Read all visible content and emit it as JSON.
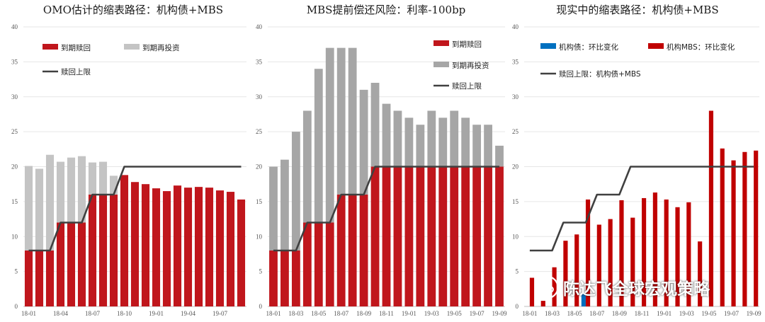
{
  "colors": {
    "matured": "#c0161c",
    "reinvest_left": "#c4c4c4",
    "reinvest_mid": "#a6a6a6",
    "agency": "#0070c0",
    "agency_mbs": "#c00000",
    "cap_line": "#404040",
    "grid": "#e6e6e6"
  },
  "watermark": {
    "text": "陈达飞全球宏观策略",
    "logo_icon": "wechat-icon"
  },
  "chart_data": [
    {
      "type": "bar",
      "title": "OMO估计的缩表路径：机构债+MBS",
      "ylim": [
        0,
        40
      ],
      "yticks": [
        0,
        5,
        10,
        15,
        20,
        25,
        30,
        35,
        40
      ],
      "categories": [
        "18-01",
        "18-02",
        "18-03",
        "18-04",
        "18-05",
        "18-06",
        "18-07",
        "18-08",
        "18-09",
        "18-10",
        "18-11",
        "18-12",
        "19-01",
        "19-02",
        "19-03",
        "19-04",
        "19-05",
        "19-06",
        "19-07",
        "19-08",
        "19-09"
      ],
      "xtick_labels": [
        "18-01",
        "",
        "",
        "18-04",
        "",
        "",
        "18-07",
        "",
        "",
        "18-10",
        "",
        "",
        "19-01",
        "",
        "",
        "19-04",
        "",
        "",
        "19-07",
        "",
        ""
      ],
      "legend": [
        {
          "label": "到期赎回",
          "kind": "bar",
          "color_key": "matured"
        },
        {
          "label": "到期再投资",
          "kind": "bar",
          "color_key": "reinvest_left"
        },
        {
          "label": "赎回上限",
          "kind": "line",
          "color_key": "cap_line"
        }
      ],
      "series": [
        {
          "name": "到期赎回",
          "kind": "stack",
          "color_key": "matured",
          "values": [
            8,
            8,
            8,
            12,
            12,
            12,
            16,
            16,
            16,
            18.8,
            17.8,
            17.5,
            16.9,
            16.5,
            17.3,
            17.0,
            17.1,
            17.0,
            16.6,
            16.4,
            15.3
          ]
        },
        {
          "name": "到期再投资",
          "kind": "stack",
          "color_key": "reinvest_left",
          "values": [
            12.1,
            11.7,
            13.7,
            8.7,
            9.3,
            9.5,
            4.6,
            4.7,
            2.7,
            0,
            0,
            0,
            0,
            0,
            0,
            0,
            0,
            0,
            0,
            0,
            0
          ]
        },
        {
          "name": "赎回上限",
          "kind": "step",
          "color_key": "cap_line",
          "values": [
            8,
            8,
            8,
            12,
            12,
            12,
            16,
            16,
            16,
            20,
            20,
            20,
            20,
            20,
            20,
            20,
            20,
            20,
            20,
            20,
            20
          ]
        }
      ]
    },
    {
      "type": "bar",
      "title": "MBS提前偿还风险：利率-100bp",
      "ylim": [
        0,
        40
      ],
      "yticks": [
        0,
        5,
        10,
        15,
        20,
        25,
        30,
        35,
        40
      ],
      "categories": [
        "18-01",
        "18-02",
        "18-03",
        "18-04",
        "18-05",
        "18-06",
        "18-07",
        "18-08",
        "18-09",
        "18-10",
        "18-11",
        "18-12",
        "19-01",
        "19-02",
        "19-03",
        "19-04",
        "19-05",
        "19-06",
        "19-07",
        "19-08",
        "19-09"
      ],
      "xtick_labels": [
        "18-01",
        "",
        "18-03",
        "",
        "18-05",
        "",
        "18-07",
        "",
        "18-09",
        "",
        "18-11",
        "",
        "19-01",
        "",
        "19-03",
        "",
        "19-05",
        "",
        "19-07",
        "",
        "19-09"
      ],
      "legend": [
        {
          "label": "到期赎回",
          "kind": "bar",
          "color_key": "matured"
        },
        {
          "label": "到期再投资",
          "kind": "bar",
          "color_key": "reinvest_mid"
        },
        {
          "label": "赎回上限",
          "kind": "line",
          "color_key": "cap_line"
        }
      ],
      "series": [
        {
          "name": "到期赎回",
          "kind": "stack",
          "color_key": "matured",
          "values": [
            8,
            8,
            8,
            12,
            12,
            12,
            16,
            16,
            16,
            20,
            20,
            20,
            20,
            20,
            20,
            20,
            20,
            20,
            20,
            20,
            20
          ]
        },
        {
          "name": "到期再投资",
          "kind": "stack",
          "color_key": "reinvest_mid",
          "values": [
            12,
            13,
            17,
            16,
            22,
            25,
            21,
            21,
            15,
            12,
            9,
            8,
            7,
            6,
            8,
            7,
            8,
            7,
            6,
            6,
            3
          ]
        },
        {
          "name": "赎回上限",
          "kind": "step",
          "color_key": "cap_line",
          "values": [
            8,
            8,
            8,
            12,
            12,
            12,
            16,
            16,
            16,
            20,
            20,
            20,
            20,
            20,
            20,
            20,
            20,
            20,
            20,
            20,
            20
          ]
        }
      ]
    },
    {
      "type": "bar",
      "title": "现实中的缩表路径：机构债+MBS",
      "ylim": [
        0,
        40
      ],
      "yticks": [
        0,
        5,
        10,
        15,
        20,
        25,
        30,
        35,
        40
      ],
      "categories": [
        "18-01",
        "18-02",
        "18-03",
        "18-04",
        "18-05",
        "18-06",
        "18-07",
        "18-08",
        "18-09",
        "18-10",
        "18-11",
        "18-12",
        "19-01",
        "19-02",
        "19-03",
        "19-04",
        "19-05",
        "19-06",
        "19-07",
        "19-08",
        "19-09"
      ],
      "xtick_labels": [
        "18-01",
        "",
        "18-03",
        "",
        "18-05",
        "",
        "18-07",
        "",
        "18-09",
        "",
        "18-11",
        "",
        "19-01",
        "",
        "19-03",
        "",
        "19-05",
        "",
        "19-07",
        "",
        "19-09"
      ],
      "legend": [
        {
          "label": "机构债：环比变化",
          "kind": "bar",
          "color_key": "agency"
        },
        {
          "label": "机构MBS：环比变化",
          "kind": "bar",
          "color_key": "agency_mbs"
        },
        {
          "label": "赎回上限：机构债+MBS",
          "kind": "line",
          "color_key": "cap_line"
        }
      ],
      "series": [
        {
          "name": "机构债：环比变化",
          "kind": "cluster",
          "color_key": "agency",
          "values": [
            0,
            0,
            0,
            0,
            0,
            1.9,
            0,
            0,
            0,
            0,
            0,
            0,
            0,
            0,
            0,
            0,
            0,
            0,
            0,
            0,
            0
          ]
        },
        {
          "name": "机构MBS：环比变化",
          "kind": "cluster",
          "color_key": "agency_mbs",
          "values": [
            4.1,
            0.8,
            5.6,
            9.4,
            10.3,
            15.3,
            11.7,
            12.5,
            15.2,
            12.7,
            15.5,
            16.3,
            15.3,
            14.2,
            14.9,
            9.3,
            28.0,
            22.6,
            20.9,
            22.1,
            22.3
          ]
        },
        {
          "name": "赎回上限：机构债+MBS",
          "kind": "step",
          "color_key": "cap_line",
          "values": [
            8,
            8,
            8,
            12,
            12,
            12,
            16,
            16,
            16,
            20,
            20,
            20,
            20,
            20,
            20,
            20,
            20,
            20,
            20,
            20,
            20
          ]
        }
      ]
    }
  ]
}
